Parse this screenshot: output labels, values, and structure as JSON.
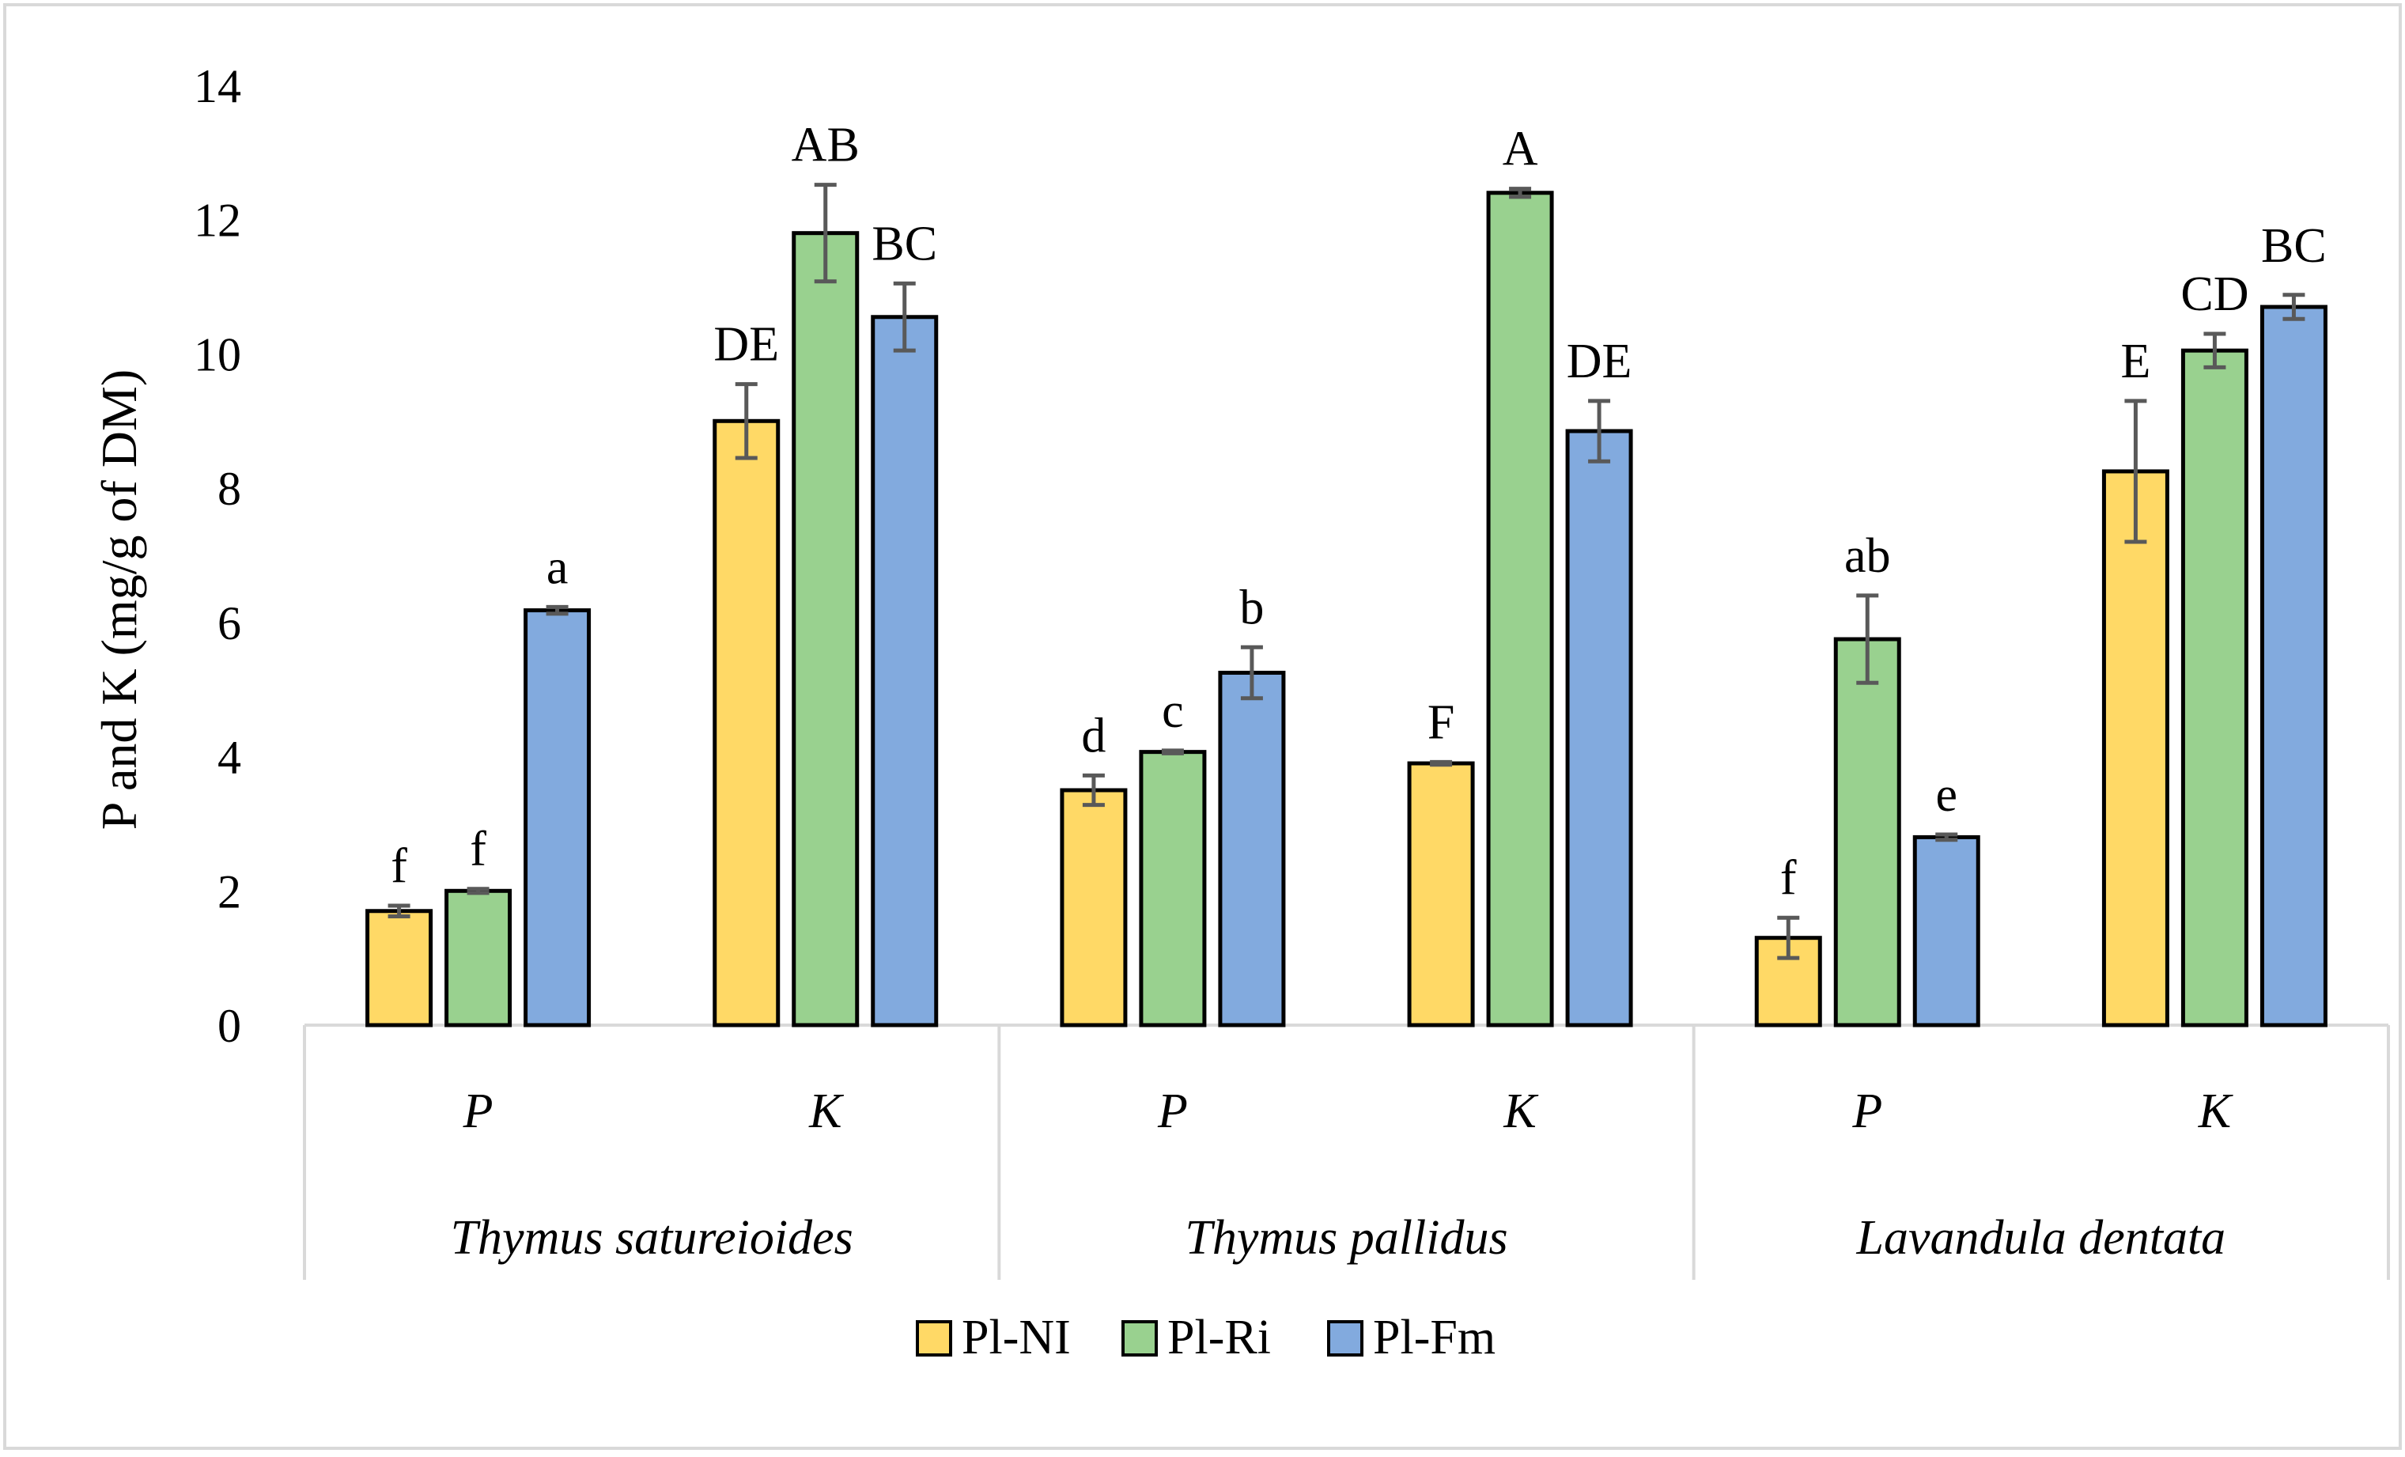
{
  "chart_data": {
    "type": "bar",
    "title": "",
    "ylabel": "P and K (mg/g of DM)",
    "xlabel": "",
    "ylim": [
      0,
      14
    ],
    "yticks": [
      0,
      2,
      4,
      6,
      8,
      10,
      12,
      14
    ],
    "grid": false,
    "legend_position": "bottom",
    "groups": [
      {
        "name": "Thymus satureioides",
        "categories": [
          "P",
          "K"
        ]
      },
      {
        "name": "Thymus pallidus",
        "categories": [
          "P",
          "K"
        ]
      },
      {
        "name": "Lavandula dentata",
        "categories": [
          "P",
          "K"
        ]
      }
    ],
    "series": [
      {
        "name": "Pl-NI",
        "color": "#FFD966",
        "values": [
          1.7,
          9.0,
          3.5,
          3.9,
          1.3,
          8.25
        ],
        "errors": [
          0.08,
          0.55,
          0.22,
          0.02,
          0.3,
          1.05
        ],
        "labels": [
          "f",
          "DE",
          "d",
          "F",
          "f",
          "E"
        ]
      },
      {
        "name": "Pl-Ri",
        "color": "#99D18F",
        "values": [
          2.0,
          11.8,
          4.07,
          12.4,
          5.75,
          10.05
        ],
        "errors": [
          0.03,
          0.72,
          0.02,
          0.06,
          0.65,
          0.25
        ],
        "labels": [
          "f",
          "AB",
          "c",
          "A",
          "ab",
          "CD"
        ]
      },
      {
        "name": "Pl-Fm",
        "color": "#82AADE",
        "values": [
          6.18,
          10.55,
          5.25,
          8.85,
          2.8,
          10.7
        ],
        "errors": [
          0.05,
          0.5,
          0.38,
          0.45,
          0.04,
          0.18
        ],
        "labels": [
          "a",
          "BC",
          "b",
          "DE",
          "e",
          "BC"
        ]
      }
    ]
  }
}
